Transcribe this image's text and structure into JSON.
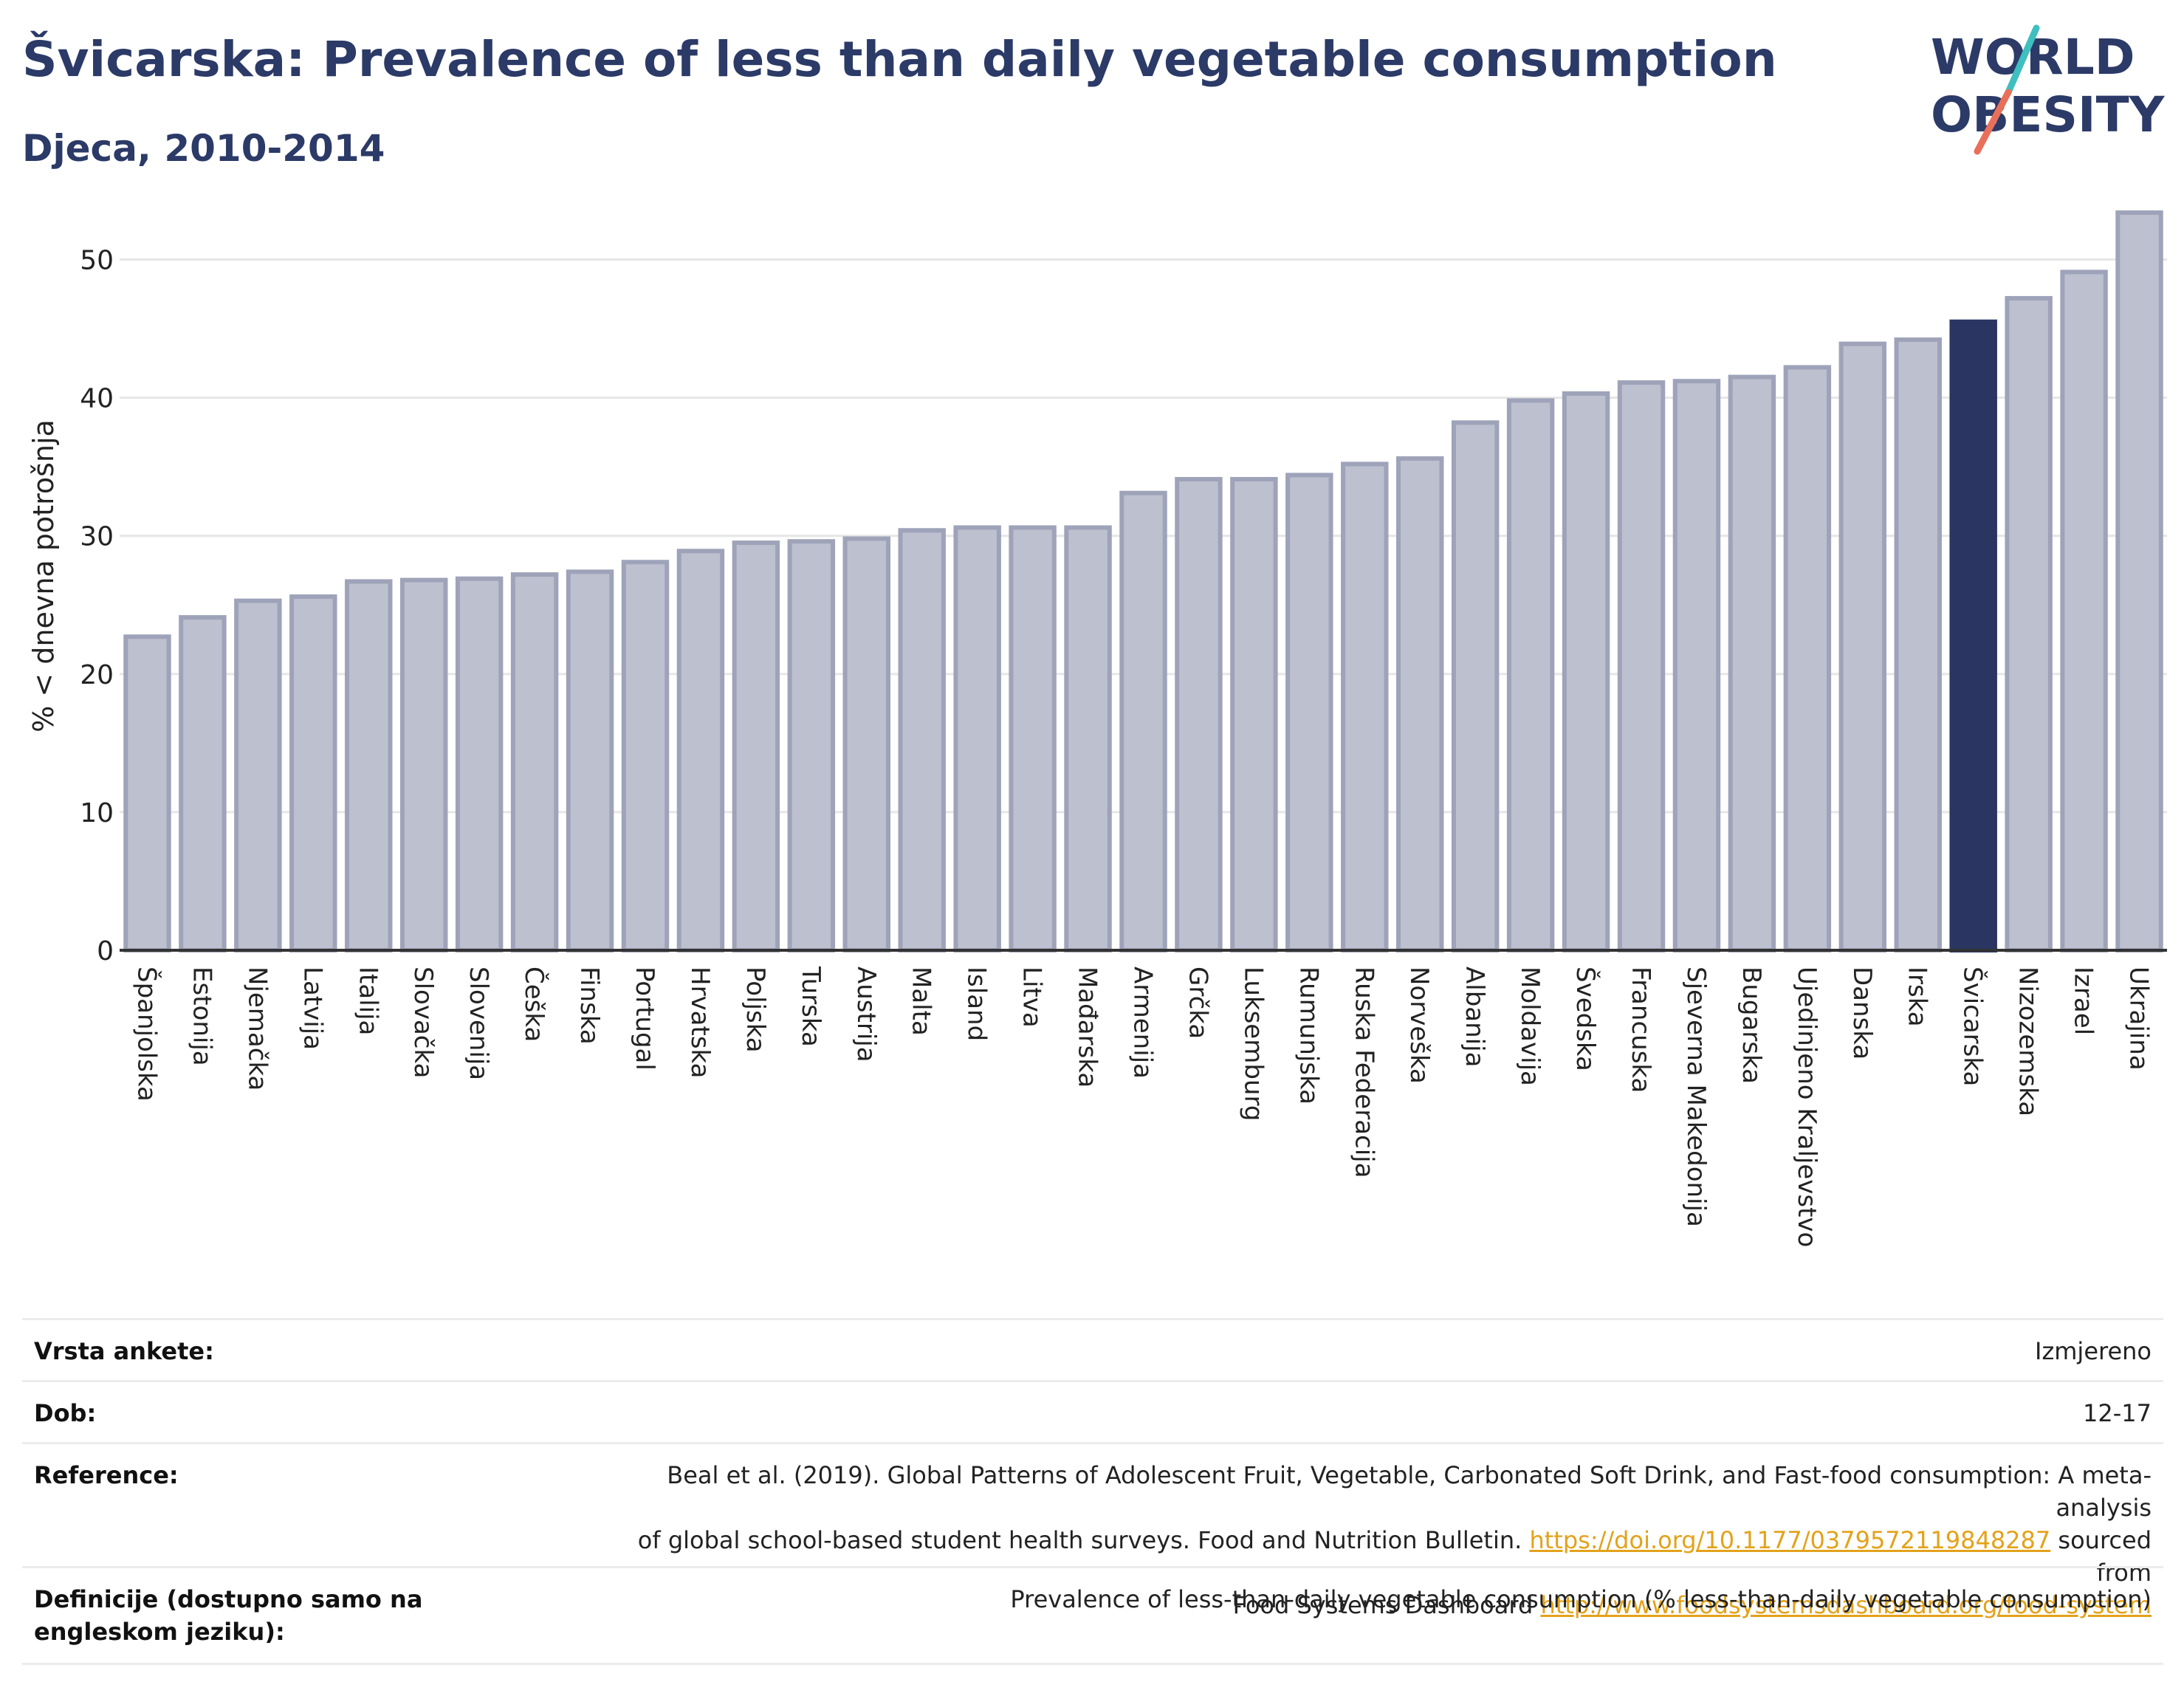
{
  "header": {
    "title": "Švicarska: Prevalence of less than daily vegetable consumption",
    "subtitle": "Djeca, 2010-2014"
  },
  "logo": {
    "line1": "WORLD",
    "line2": "OBESITY",
    "colors": {
      "text": "#2b3a67",
      "slash_teal": "#3fbfbf",
      "slash_red": "#e8705a"
    }
  },
  "colors": {
    "bar_fill": "#bcc0cf",
    "bar_stroke": "#9ea3b9",
    "highlight_fill": "#2b3562",
    "grid": "#e6e6e6",
    "axis": "#333333"
  },
  "chart_data": {
    "type": "bar",
    "ylabel": "% < dnevna potrošnja",
    "ylim": [
      0,
      55
    ],
    "yticks": [
      0,
      10,
      20,
      30,
      40,
      50
    ],
    "grid": true,
    "highlight": "Švicarska",
    "categories": [
      "Španjolska",
      "Estonija",
      "Njemačka",
      "Latvija",
      "Italija",
      "Slovačka",
      "Slovenija",
      "Češka",
      "Finska",
      "Portugal",
      "Hrvatska",
      "Poljska",
      "Turska",
      "Austrija",
      "Malta",
      "Island",
      "Litva",
      "Mađarska",
      "Armenija",
      "Grčka",
      "Luksemburg",
      "Rumunjska",
      "Ruska Federacija",
      "Norveška",
      "Albanija",
      "Moldavija",
      "Švedska",
      "Francuska",
      "Sjeverna Makedonija",
      "Bugarska",
      "Ujedinjeno Kraljevstvo",
      "Danska",
      "Irska",
      "Švicarska",
      "Nizozemska",
      "Izrael",
      "Ukrajina"
    ],
    "values": [
      22.7,
      24.1,
      25.3,
      25.6,
      26.7,
      26.8,
      26.9,
      27.2,
      27.4,
      28.1,
      28.9,
      29.5,
      29.6,
      29.8,
      30.4,
      30.6,
      30.6,
      30.6,
      33.1,
      34.1,
      34.1,
      34.4,
      35.2,
      35.6,
      38.2,
      39.8,
      40.3,
      41.1,
      41.2,
      41.5,
      42.2,
      43.9,
      44.2,
      45.5,
      47.2,
      49.1,
      53.4
    ]
  },
  "meta": {
    "survey_type": {
      "label": "Vrsta ankete:",
      "value": "Izmjereno"
    },
    "age": {
      "label": "Dob:",
      "value": "12-17"
    },
    "reference": {
      "label": "Reference:",
      "line1": "Beal et al. (2019). Global Patterns of Adolescent Fruit, Vegetable, Carbonated Soft Drink, and Fast-food consumption: A meta-analysis",
      "line2_pre": "of global school-based student health surveys. Food and Nutrition Bulletin.",
      "line2_link": "https://doi.org/10.1177/0379572119848287",
      "line2_post": "sourced from",
      "line3_pre": "Food Systems Dashboard",
      "line3_link": "http://www.foodsystemsdashboard.org/food-system"
    },
    "definitions": {
      "label": "Definicije (dostupno samo na engleskom jeziku):",
      "value": "Prevalence of less-than-daily vegetable consumption (% less-than-daily vegetable consumption)"
    }
  }
}
